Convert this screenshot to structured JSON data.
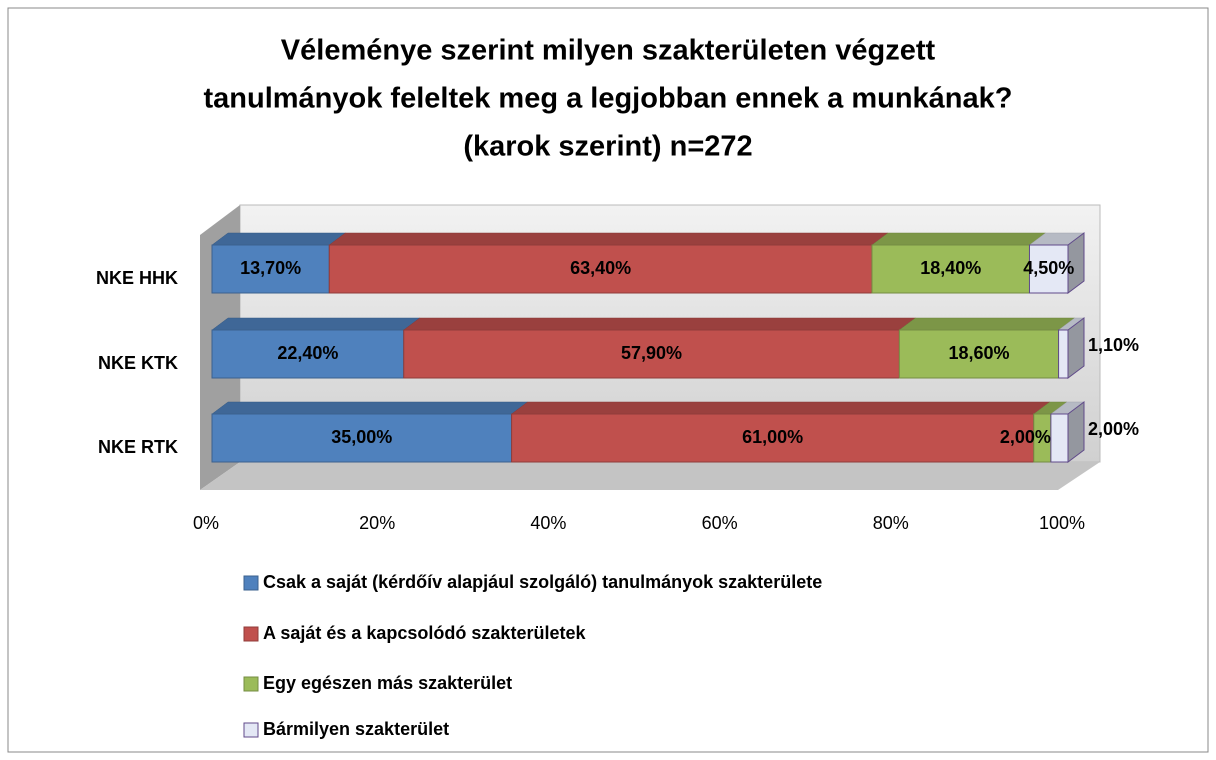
{
  "chart_data": {
    "type": "stacked-bar-3d",
    "title": [
      "Véleménye szerint milyen szakterületen végzett",
      "tanulmányok feleltek meg a legjobban ennek a munkának?",
      "(karok szerint) n=272"
    ],
    "categories": [
      "NKE HHK",
      "NKE KTK",
      "NKE RTK"
    ],
    "series": [
      {
        "name": "Csak a saját (kérdőív alapjául szolgáló) tanulmányok szakterülete",
        "color": "#4f81bd",
        "values": [
          13.7,
          22.4,
          35
        ],
        "value_labels": [
          "13,70%",
          "22,40%",
          "35,00%"
        ]
      },
      {
        "name": "A saját és a kapcsolódó szakterületek",
        "color": "#c0504d",
        "values": [
          63.4,
          57.9,
          61
        ],
        "value_labels": [
          "63,40%",
          "57,90%",
          "61,00%"
        ]
      },
      {
        "name": "Egy egészen más szakterület",
        "color": "#9bbb59",
        "values": [
          18.4,
          18.6,
          2
        ],
        "value_labels": [
          "18,40%",
          "18,60%",
          "2,00%"
        ]
      },
      {
        "name": "Bármilyen szakterület",
        "color": "#e4e8f5",
        "values": [
          4.5,
          1.1,
          2
        ],
        "value_labels": [
          "4,50%",
          "1,10%",
          "2,00%"
        ]
      }
    ],
    "xlim": [
      0,
      100
    ],
    "xticks": [
      {
        "value": 0,
        "label": "0%"
      },
      {
        "value": 20,
        "label": "20%"
      },
      {
        "value": 40,
        "label": "40%"
      },
      {
        "value": 60,
        "label": "60%"
      },
      {
        "value": 80,
        "label": "80%"
      },
      {
        "value": 100,
        "label": "100%"
      }
    ],
    "legend": "bottom"
  }
}
